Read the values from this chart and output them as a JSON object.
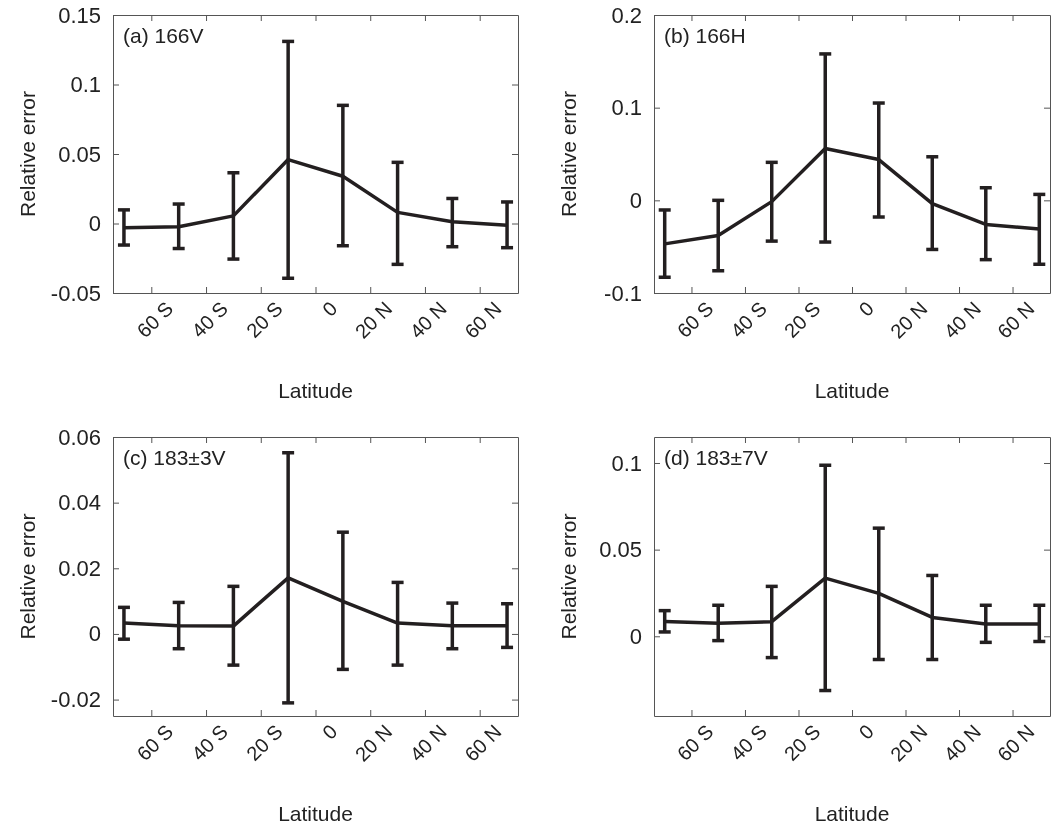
{
  "chart_data": [
    {
      "type": "line",
      "title": "(a) 166V",
      "xlabel": "Latitude",
      "ylabel": "Relative error",
      "x": [
        -70,
        -50,
        -30,
        -10,
        10,
        30,
        50,
        70
      ],
      "xlim": [
        -74,
        74
      ],
      "xticks": [
        {
          "value": -60,
          "label": "60 S"
        },
        {
          "value": -40,
          "label": "40 S"
        },
        {
          "value": -20,
          "label": "20 S"
        },
        {
          "value": 0,
          "label": "0"
        },
        {
          "value": 20,
          "label": "20 N"
        },
        {
          "value": 40,
          "label": "40 N"
        },
        {
          "value": 60,
          "label": "60 N"
        }
      ],
      "ylim": [
        -0.05,
        0.15
      ],
      "yticks": [
        -0.05,
        0,
        0.05,
        0.1,
        0.15
      ],
      "series": [
        {
          "color": "#231f20",
          "values": [
            -0.003,
            -0.0024,
            0.0055,
            0.046,
            0.034,
            0.008,
            0.0012,
            -0.0012
          ],
          "errors": [
            [
              -0.0155,
              0.0098
            ],
            [
              -0.018,
              0.014
            ],
            [
              -0.0256,
              0.0365
            ],
            [
              -0.0394,
              0.131
            ],
            [
              -0.016,
              0.085
            ],
            [
              -0.0294,
              0.044
            ],
            [
              -0.0167,
              0.018
            ],
            [
              -0.0174,
              0.0155
            ]
          ]
        }
      ]
    },
    {
      "type": "line",
      "title": "(b) 166H",
      "xlabel": "Latitude",
      "ylabel": "Relative error",
      "x": [
        -70,
        -50,
        -30,
        -10,
        10,
        30,
        50,
        70
      ],
      "xlim": [
        -74,
        74
      ],
      "xticks": [
        {
          "value": -60,
          "label": "60 S"
        },
        {
          "value": -40,
          "label": "40 S"
        },
        {
          "value": -20,
          "label": "20 S"
        },
        {
          "value": 0,
          "label": "0"
        },
        {
          "value": 20,
          "label": "20 N"
        },
        {
          "value": 40,
          "label": "40 N"
        },
        {
          "value": 60,
          "label": "60 N"
        }
      ],
      "ylim": [
        -0.1,
        0.2
      ],
      "yticks": [
        -0.1,
        0,
        0.1,
        0.2
      ],
      "series": [
        {
          "color": "#231f20",
          "values": [
            -0.047,
            -0.038,
            -0.0014,
            0.056,
            0.044,
            -0.0036,
            -0.026,
            -0.031
          ],
          "errors": [
            [
              -0.083,
              -0.0104
            ],
            [
              -0.076,
              0
            ],
            [
              -0.044,
              0.041
            ],
            [
              -0.045,
              0.158
            ],
            [
              -0.018,
              0.105
            ],
            [
              -0.053,
              0.047
            ],
            [
              -0.064,
              0.0136
            ],
            [
              -0.069,
              0.0064
            ]
          ]
        }
      ]
    },
    {
      "type": "line",
      "title": "(c) 183±3V",
      "xlabel": "Latitude",
      "ylabel": "Relative error",
      "x": [
        -70,
        -50,
        -30,
        -10,
        10,
        30,
        50,
        70
      ],
      "xlim": [
        -74,
        74
      ],
      "xticks": [
        {
          "value": -60,
          "label": "60 S"
        },
        {
          "value": -40,
          "label": "40 S"
        },
        {
          "value": -20,
          "label": "20 S"
        },
        {
          "value": 0,
          "label": "0"
        },
        {
          "value": 20,
          "label": "20 N"
        },
        {
          "value": 40,
          "label": "40 N"
        },
        {
          "value": 60,
          "label": "60 N"
        }
      ],
      "ylim": [
        -0.025,
        0.06
      ],
      "yticks": [
        -0.02,
        0,
        0.02,
        0.04,
        0.06
      ],
      "series": [
        {
          "color": "#231f20",
          "values": [
            0.0033,
            0.0025,
            0.0024,
            0.0171,
            0.0099,
            0.0033,
            0.0025,
            0.0025
          ],
          "errors": [
            [
              -0.0016,
              0.0081
            ],
            [
              -0.0045,
              0.0096
            ],
            [
              -0.0095,
              0.0145
            ],
            [
              -0.021,
              0.0552
            ],
            [
              -0.0108,
              0.031
            ],
            [
              -0.0095,
              0.0157
            ],
            [
              -0.0045,
              0.0094
            ],
            [
              -0.0041,
              0.0092
            ]
          ]
        }
      ]
    },
    {
      "type": "line",
      "title": "(d) 183±7V",
      "xlabel": "Latitude",
      "ylabel": "Relative error",
      "x": [
        -70,
        -50,
        -30,
        -10,
        10,
        30,
        50,
        70
      ],
      "xlim": [
        -74,
        74
      ],
      "xticks": [
        {
          "value": -60,
          "label": "60 S"
        },
        {
          "value": -40,
          "label": "40 S"
        },
        {
          "value": -20,
          "label": "20 S"
        },
        {
          "value": 0,
          "label": "0"
        },
        {
          "value": 20,
          "label": "20 N"
        },
        {
          "value": 40,
          "label": "40 N"
        },
        {
          "value": 60,
          "label": "60 N"
        }
      ],
      "ylim": [
        -0.046,
        0.115
      ],
      "yticks": [
        0,
        0.05,
        0.1
      ],
      "series": [
        {
          "color": "#231f20",
          "values": [
            0.0086,
            0.0075,
            0.0084,
            0.0336,
            0.0248,
            0.0109,
            0.0071,
            0.0071
          ],
          "errors": [
            [
              0.0025,
              0.0148
            ],
            [
              -0.0025,
              0.0179
            ],
            [
              -0.0123,
              0.0288
            ],
            [
              -0.0313,
              0.0987
            ],
            [
              -0.0134,
              0.0624
            ],
            [
              -0.0134,
              0.0351
            ],
            [
              -0.0035,
              0.0179
            ],
            [
              -0.003,
              0.0179
            ]
          ]
        }
      ]
    }
  ]
}
